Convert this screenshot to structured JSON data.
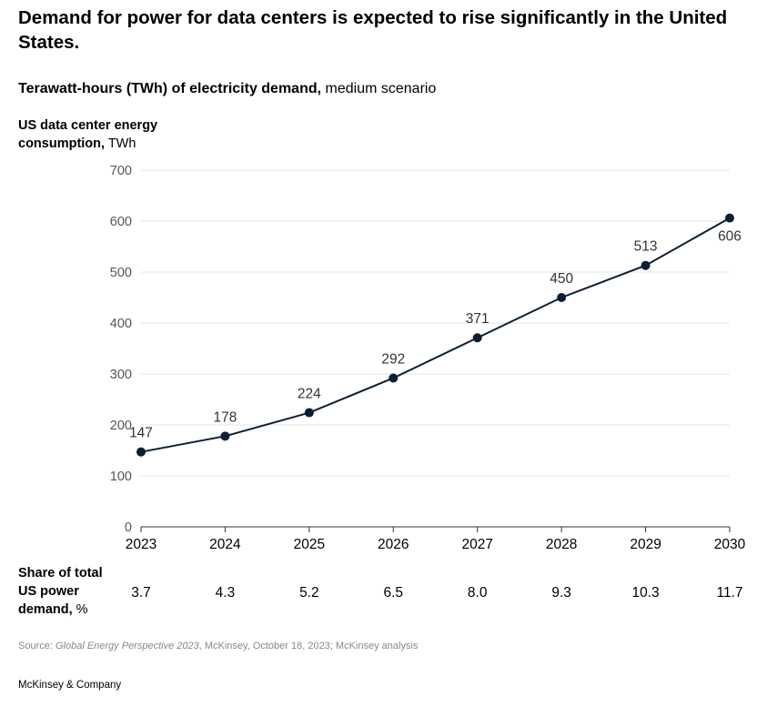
{
  "title": "Demand for power for data centers is expected to rise significantly in the United States.",
  "subtitle": {
    "bold": "Terawatt-hours (TWh) of electricity demand,",
    "normal": " medium scenario"
  },
  "y_axis_title": {
    "bold": "US data center energy consumption,",
    "unit": " TWh"
  },
  "share_label": {
    "bold": "Share of total US power demand,",
    "unit": " %"
  },
  "share_values": [
    "3.7",
    "4.3",
    "5.2",
    "6.5",
    "8.0",
    "9.3",
    "10.3",
    "11.7"
  ],
  "source": {
    "prefix": "Source: ",
    "italic": "Global Energy Perspective 2023",
    "suffix": ", McKinsey, October 18, 2023; McKinsey analysis"
  },
  "brand": "McKinsey & Company",
  "colors": {
    "line": "#0b1e33",
    "grid": "#e6e6e6",
    "axis": "#333333",
    "text": "#000000",
    "source": "#888888"
  },
  "chart_data": {
    "type": "line",
    "x": [
      "2023",
      "2024",
      "2025",
      "2026",
      "2027",
      "2028",
      "2029",
      "2030"
    ],
    "values": [
      147,
      178,
      224,
      292,
      371,
      450,
      513,
      606
    ],
    "data_labels": [
      "147",
      "178",
      "224",
      "292",
      "371",
      "450",
      "513",
      "606"
    ],
    "yticks": [
      0,
      100,
      200,
      300,
      400,
      500,
      600,
      700
    ],
    "ylim": [
      0,
      700
    ],
    "grid": true
  }
}
